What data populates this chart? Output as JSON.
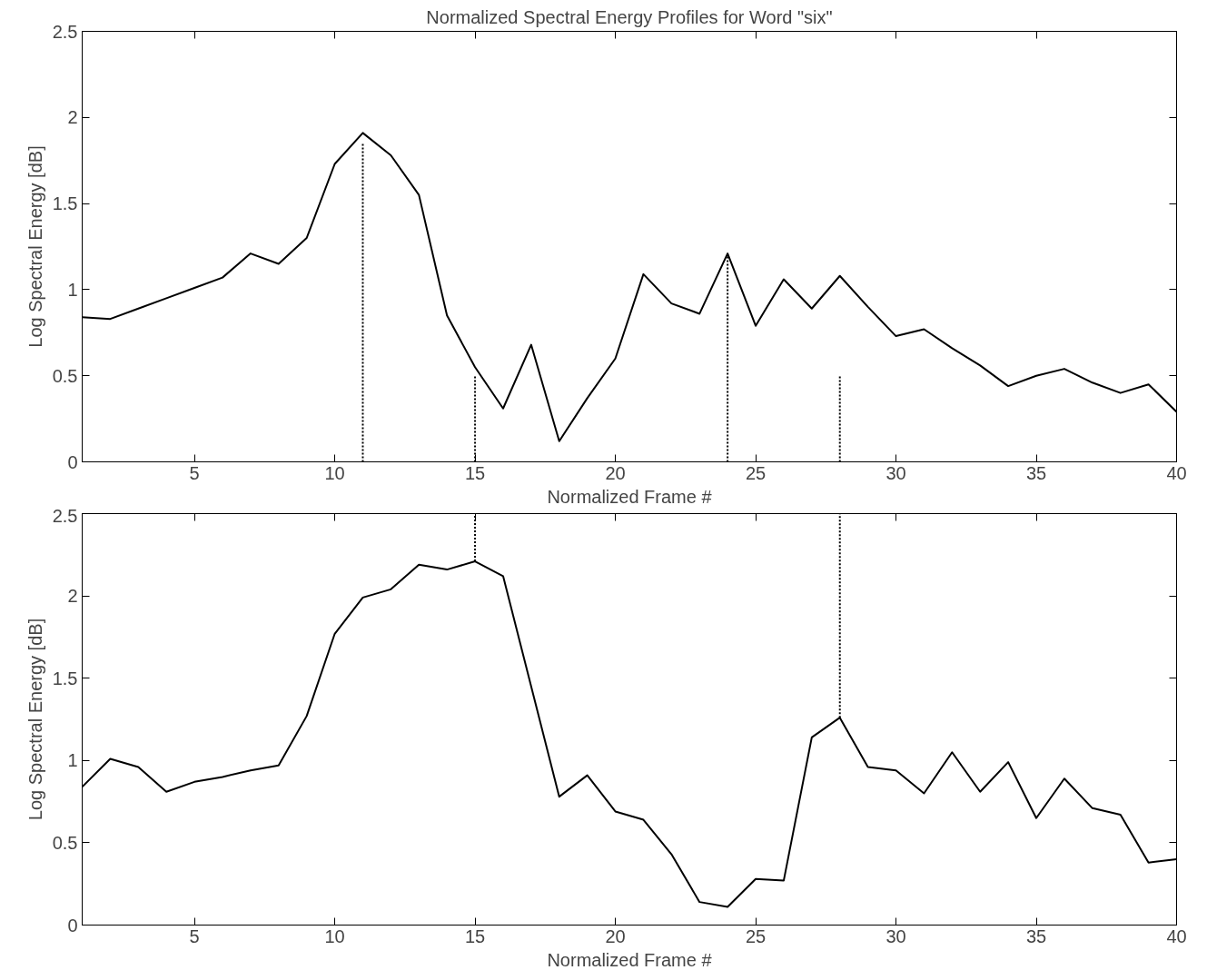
{
  "chart_data": [
    {
      "type": "line",
      "title": "Normalized Spectral Energy Profiles for Word \"six\"",
      "xlabel": "Normalized Frame #",
      "ylabel": "Log Spectral Energy [dB]",
      "xlim": [
        1,
        40
      ],
      "ylim": [
        0,
        2.5
      ],
      "xticks": [
        5,
        10,
        15,
        20,
        25,
        30,
        35,
        40
      ],
      "yticks": [
        0,
        0.5,
        1,
        1.5,
        2,
        2.5
      ],
      "grid": false,
      "x": [
        1,
        2,
        3,
        4,
        5,
        6,
        7,
        8,
        9,
        10,
        11,
        12,
        13,
        14,
        15,
        16,
        17,
        18,
        19,
        20,
        21,
        22,
        23,
        24,
        25,
        26,
        27,
        28,
        29,
        30,
        31,
        32,
        33,
        34,
        35,
        36,
        37,
        38,
        39,
        40
      ],
      "series": [
        {
          "color": "#000000",
          "line_style": "solid",
          "values": [
            0.84,
            0.83,
            0.89,
            0.95,
            1.01,
            1.07,
            1.21,
            1.15,
            1.3,
            1.73,
            1.91,
            1.78,
            1.55,
            0.85,
            0.55,
            0.31,
            0.68,
            0.12,
            0.37,
            0.6,
            1.09,
            0.92,
            0.86,
            1.21,
            0.79,
            1.06,
            0.89,
            1.08,
            0.9,
            0.73,
            0.77,
            0.66,
            0.56,
            0.44,
            0.5,
            0.54,
            0.46,
            0.4,
            0.45,
            0.29
          ]
        },
        {
          "color": "#000000",
          "line_style": "dotted",
          "x": [
            11,
            11
          ],
          "values": [
            0,
            1.85
          ]
        },
        {
          "color": "#000000",
          "line_style": "dotted",
          "x": [
            15,
            15
          ],
          "values": [
            0,
            0.5
          ]
        },
        {
          "color": "#000000",
          "line_style": "dotted",
          "x": [
            24,
            24
          ],
          "values": [
            0,
            1.2
          ]
        },
        {
          "color": "#000000",
          "line_style": "dotted",
          "x": [
            28,
            28
          ],
          "values": [
            0,
            0.5
          ]
        }
      ]
    },
    {
      "type": "line",
      "xlabel": "Normalized Frame #",
      "ylabel": "Log Spectral Energy [dB]",
      "xlim": [
        1,
        40
      ],
      "ylim": [
        0,
        2.5
      ],
      "xticks": [
        5,
        10,
        15,
        20,
        25,
        30,
        35,
        40
      ],
      "yticks": [
        0,
        0.5,
        1,
        1.5,
        2,
        2.5
      ],
      "grid": false,
      "x": [
        1,
        2,
        3,
        4,
        5,
        6,
        7,
        8,
        9,
        10,
        11,
        12,
        13,
        14,
        15,
        16,
        17,
        18,
        19,
        20,
        21,
        22,
        23,
        24,
        25,
        26,
        27,
        28,
        29,
        30,
        31,
        32,
        33,
        34,
        35,
        36,
        37,
        38,
        39,
        40
      ],
      "series": [
        {
          "color": "#000000",
          "line_style": "solid",
          "values": [
            0.84,
            1.01,
            0.96,
            0.81,
            0.87,
            0.9,
            0.94,
            0.97,
            1.27,
            1.77,
            1.99,
            2.04,
            2.19,
            2.16,
            2.21,
            2.12,
            1.45,
            0.78,
            0.91,
            0.69,
            0.64,
            0.43,
            0.14,
            0.11,
            0.28,
            0.27,
            1.14,
            1.26,
            0.96,
            0.94,
            0.8,
            1.05,
            0.81,
            0.99,
            0.65,
            0.89,
            0.71,
            0.67,
            0.38,
            0.4
          ]
        },
        {
          "color": "#000000",
          "line_style": "dotted",
          "x": [
            15,
            15
          ],
          "values": [
            2.21,
            2.5
          ]
        },
        {
          "color": "#000000",
          "line_style": "dotted",
          "x": [
            28,
            28
          ],
          "values": [
            1.26,
            2.5
          ]
        }
      ]
    }
  ]
}
